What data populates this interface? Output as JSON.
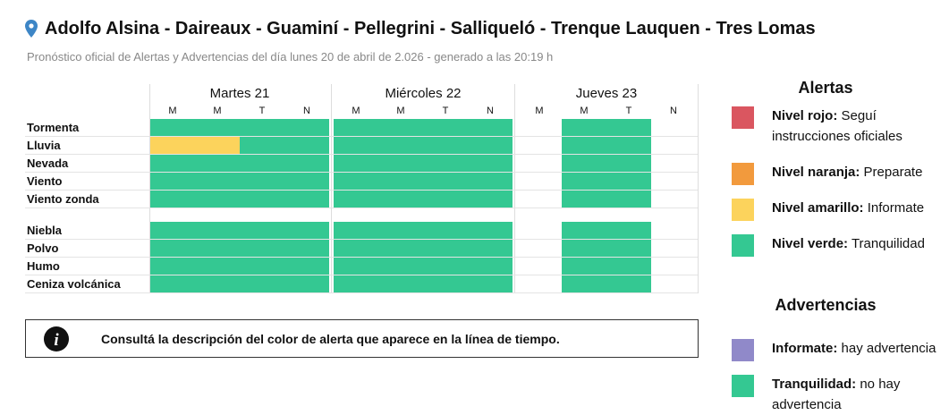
{
  "header": {
    "title": "Adolfo Alsina - Daireaux - Guaminí - Pellegrini - Salliqueló - Trenque Lauquen - Tres Lomas",
    "subtitle": "Pronóstico oficial de Alertas y Advertencias del día lunes 20 de abril de 2.026 - generado a las 20:19 h"
  },
  "table": {
    "days": [
      {
        "label": "Martes 21",
        "periods": [
          "M",
          "M",
          "T",
          "N"
        ]
      },
      {
        "label": "Miércoles 22",
        "periods": [
          "M",
          "M",
          "T",
          "N"
        ]
      },
      {
        "label": "Jueves 23",
        "periods": [
          "M",
          "M",
          "T",
          "N"
        ]
      }
    ],
    "groups": [
      [
        {
          "label": "Tormenta",
          "cells": [
            "#34c892",
            "#34c892",
            "#34c892",
            "#34c892",
            "#34c892",
            "#34c892",
            "#34c892",
            "#34c892",
            null,
            "#34c892",
            "#34c892",
            null
          ]
        },
        {
          "label": "Lluvia",
          "cells": [
            "#fcd35c",
            "#fcd35c",
            "#34c892",
            "#34c892",
            "#34c892",
            "#34c892",
            "#34c892",
            "#34c892",
            null,
            "#34c892",
            "#34c892",
            null
          ]
        },
        {
          "label": "Nevada",
          "cells": [
            "#34c892",
            "#34c892",
            "#34c892",
            "#34c892",
            "#34c892",
            "#34c892",
            "#34c892",
            "#34c892",
            null,
            "#34c892",
            "#34c892",
            null
          ]
        },
        {
          "label": "Viento",
          "cells": [
            "#34c892",
            "#34c892",
            "#34c892",
            "#34c892",
            "#34c892",
            "#34c892",
            "#34c892",
            "#34c892",
            null,
            "#34c892",
            "#34c892",
            null
          ]
        },
        {
          "label": "Viento zonda",
          "cells": [
            "#34c892",
            "#34c892",
            "#34c892",
            "#34c892",
            "#34c892",
            "#34c892",
            "#34c892",
            "#34c892",
            null,
            "#34c892",
            "#34c892",
            null
          ]
        }
      ],
      [
        {
          "label": "Niebla",
          "cells": [
            "#34c892",
            "#34c892",
            "#34c892",
            "#34c892",
            "#34c892",
            "#34c892",
            "#34c892",
            "#34c892",
            null,
            "#34c892",
            "#34c892",
            null
          ]
        },
        {
          "label": "Polvo",
          "cells": [
            "#34c892",
            "#34c892",
            "#34c892",
            "#34c892",
            "#34c892",
            "#34c892",
            "#34c892",
            "#34c892",
            null,
            "#34c892",
            "#34c892",
            null
          ]
        },
        {
          "label": "Humo",
          "cells": [
            "#34c892",
            "#34c892",
            "#34c892",
            "#34c892",
            "#34c892",
            "#34c892",
            "#34c892",
            "#34c892",
            null,
            "#34c892",
            "#34c892",
            null
          ]
        },
        {
          "label": "Ceniza volcánica",
          "cells": [
            "#34c892",
            "#34c892",
            "#34c892",
            "#34c892",
            "#34c892",
            "#34c892",
            "#34c892",
            "#34c892",
            null,
            "#34c892",
            "#34c892",
            null
          ]
        }
      ]
    ]
  },
  "info": "Consultá la descripción del color de alerta que aparece en la línea de tiempo.",
  "legend": {
    "alerts": {
      "title": "Alertas",
      "items": [
        {
          "label": "Nivel rojo:",
          "description": "Seguí instrucciones oficiales",
          "color": "#da5660"
        },
        {
          "label": "Nivel naranja:",
          "description": "Preparate",
          "color": "#f29a3d"
        },
        {
          "label": "Nivel amarillo:",
          "description": "Informate",
          "color": "#fcd35c"
        },
        {
          "label": "Nivel verde:",
          "description": "Tranquilidad",
          "color": "#34c892"
        }
      ]
    },
    "warnings": {
      "title": "Advertencias",
      "items": [
        {
          "label": "Informate:",
          "description": "hay advertencia",
          "color": "#9089c9"
        },
        {
          "label": "Tranquilidad:",
          "description": "no hay advertencia",
          "color": "#34c892"
        }
      ]
    }
  }
}
